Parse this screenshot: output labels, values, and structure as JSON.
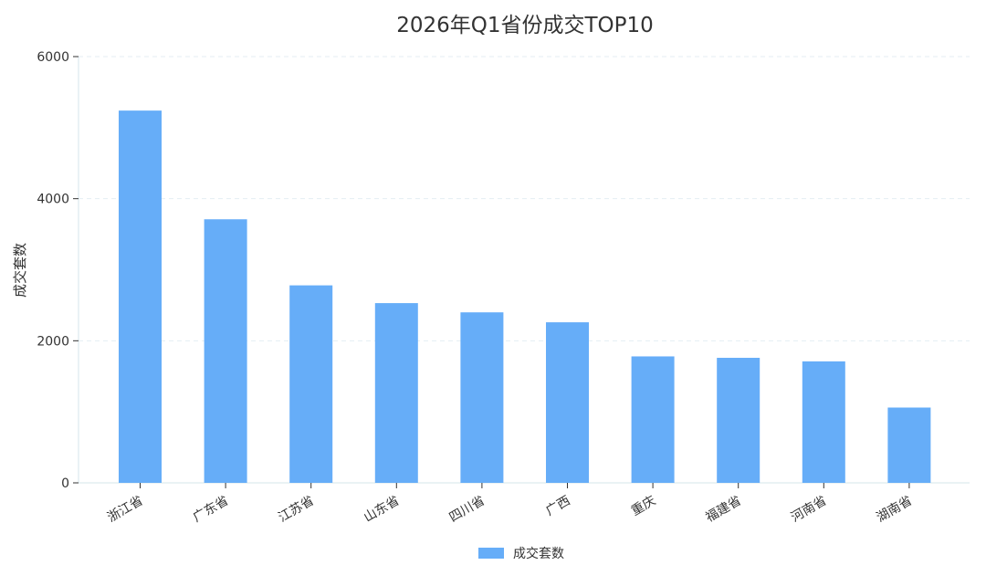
{
  "chart_data": {
    "type": "bar",
    "title": "2026年Q1省份成交TOP10",
    "xlabel": "",
    "ylabel": "成交套数",
    "categories": [
      "浙江省",
      "广东省",
      "江苏省",
      "山东省",
      "四川省",
      "广西",
      "重庆",
      "福建省",
      "河南省",
      "湖南省"
    ],
    "series": [
      {
        "name": "成交套数",
        "values": [
          5240,
          3710,
          2780,
          2530,
          2400,
          2260,
          1780,
          1760,
          1710,
          1060
        ],
        "color": "#66adf8"
      }
    ],
    "y_ticks": [
      0,
      2000,
      4000,
      6000
    ],
    "y_tick_labels": [
      "0",
      "2000",
      "4000",
      "6000"
    ],
    "ylim": [
      0,
      6000
    ],
    "grid": true,
    "legend_position": "bottom-center"
  }
}
